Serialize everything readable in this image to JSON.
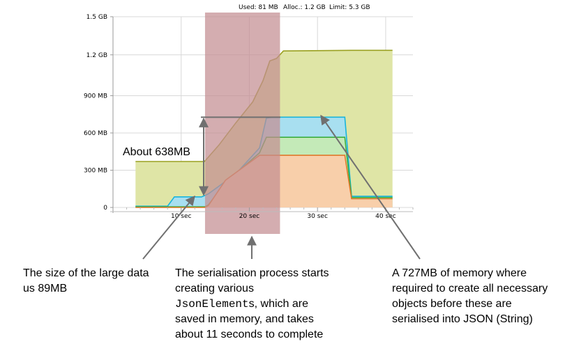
{
  "status_bar": {
    "used": "Used: 81 MB",
    "alloc": "Alloc.: 1.2 GB",
    "limit": "Limit: 5.3 GB"
  },
  "colors": {
    "alloc_fill": "#dfe5a6",
    "alloc_line": "#9aa020",
    "cyan_fill": "#a8dff0",
    "cyan_line": "#18b4dc",
    "green_fill": "#c4eab8",
    "green_line": "#3cae3c",
    "orange_fill": "#f8cfaa",
    "orange_line": "#e0782a",
    "highlight": "#c48e92",
    "arrow": "#707070"
  },
  "chart_data": {
    "type": "area",
    "x_unit": "sec",
    "y_unit": "MB",
    "xlim": [
      0,
      44
    ],
    "ylim": [
      0,
      1536
    ],
    "x_ticks": [
      {
        "value": 10,
        "label": "10 sec"
      },
      {
        "value": 20,
        "label": "20 sec"
      },
      {
        "value": 30,
        "label": "30 sec"
      },
      {
        "value": 40,
        "label": "40 sec"
      }
    ],
    "y_ticks": [
      {
        "value": 0,
        "label": "0"
      },
      {
        "value": 300,
        "label": "300 MB"
      },
      {
        "value": 600,
        "label": "600 MB"
      },
      {
        "value": 900,
        "label": "900 MB"
      },
      {
        "value": 1229,
        "label": "1.2 GB"
      },
      {
        "value": 1536,
        "label": "1.5 GB"
      }
    ],
    "grid": true,
    "series": [
      {
        "key": "alloc",
        "points": [
          [
            3.3,
            370
          ],
          [
            13.4,
            370
          ],
          [
            13.5,
            375
          ],
          [
            15.5,
            500
          ],
          [
            18,
            680
          ],
          [
            20.5,
            850
          ],
          [
            22,
            1020
          ],
          [
            23,
            1180
          ],
          [
            24,
            1200
          ],
          [
            25,
            1260
          ],
          [
            35,
            1265
          ],
          [
            41,
            1265
          ]
        ]
      },
      {
        "key": "cyan",
        "points": [
          [
            3.3,
            10
          ],
          [
            8,
            10
          ],
          [
            9,
            85
          ],
          [
            13,
            85
          ],
          [
            14,
            110
          ],
          [
            16,
            190
          ],
          [
            18.5,
            300
          ],
          [
            21.5,
            480
          ],
          [
            22.5,
            720
          ],
          [
            23.5,
            727
          ],
          [
            34,
            727
          ],
          [
            35,
            90
          ],
          [
            41,
            90
          ]
        ]
      },
      {
        "key": "green",
        "points": [
          [
            3.3,
            5
          ],
          [
            13.5,
            5
          ],
          [
            14,
            20
          ],
          [
            16.5,
            200
          ],
          [
            21.5,
            440
          ],
          [
            22.5,
            565
          ],
          [
            34,
            565
          ],
          [
            35,
            80
          ],
          [
            41,
            80
          ]
        ]
      },
      {
        "key": "orange",
        "points": [
          [
            3.3,
            0
          ],
          [
            13.5,
            0
          ],
          [
            14,
            15
          ],
          [
            16.5,
            220
          ],
          [
            21.5,
            420
          ],
          [
            22.5,
            420
          ],
          [
            34,
            420
          ],
          [
            35,
            70
          ],
          [
            41,
            70
          ]
        ]
      }
    ],
    "highlight_region": {
      "x_start": 13.5,
      "x_end": 24.5
    },
    "annotations": {
      "bracket": {
        "top_mb": 727,
        "bottom_mb": 89,
        "label": "About 638MB"
      }
    }
  },
  "notes": {
    "large_data": "The size of the large data us 89MB",
    "serialisation_before": "The serialisation process starts creating various ",
    "serialisation_code": "JsonElement",
    "serialisation_after": "s, which are saved in memory, and takes about 11 seconds to complete",
    "memory_727": "A 727MB of memory where required to create all necessary objects before these are serialised into JSON (String)"
  }
}
